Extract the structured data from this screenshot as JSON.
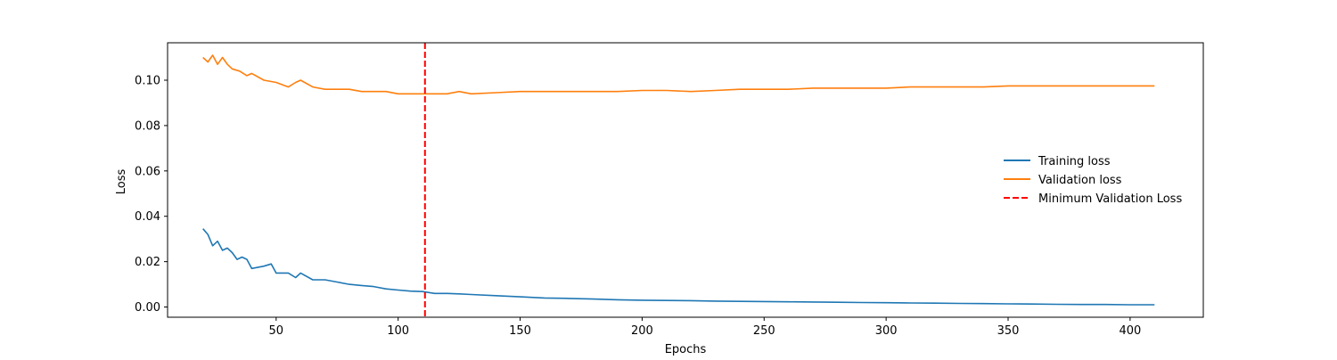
{
  "chart_data": {
    "type": "line",
    "title": "",
    "xlabel": "Epochs",
    "ylabel": "Loss",
    "xlim": [
      5.5,
      430
    ],
    "ylim": [
      -0.0045,
      0.1165
    ],
    "xticks": [
      50,
      100,
      150,
      200,
      250,
      300,
      350,
      400
    ],
    "xtick_labels": [
      "50",
      "100",
      "150",
      "200",
      "250",
      "300",
      "350",
      "400"
    ],
    "yticks": [
      0.0,
      0.02,
      0.04,
      0.06,
      0.08,
      0.1
    ],
    "ytick_labels": [
      "0.00",
      "0.02",
      "0.04",
      "0.06",
      "0.08",
      "0.10"
    ],
    "grid": false,
    "legend_position": "center-right",
    "series": [
      {
        "name": "Training loss",
        "color": "#1f77b4",
        "style": "solid",
        "x": [
          20,
          22,
          24,
          26,
          28,
          30,
          32,
          34,
          36,
          38,
          40,
          45,
          48,
          50,
          55,
          58,
          60,
          65,
          70,
          75,
          80,
          85,
          90,
          95,
          100,
          105,
          110,
          115,
          120,
          125,
          130,
          140,
          150,
          160,
          170,
          180,
          190,
          200,
          210,
          220,
          230,
          240,
          250,
          260,
          270,
          280,
          290,
          300,
          310,
          320,
          330,
          340,
          350,
          360,
          370,
          380,
          390,
          400,
          410
        ],
        "y": [
          0.0345,
          0.032,
          0.027,
          0.029,
          0.025,
          0.026,
          0.024,
          0.021,
          0.022,
          0.021,
          0.017,
          0.018,
          0.019,
          0.015,
          0.015,
          0.013,
          0.015,
          0.012,
          0.012,
          0.011,
          0.01,
          0.0095,
          0.009,
          0.008,
          0.0075,
          0.007,
          0.0068,
          0.006,
          0.006,
          0.0058,
          0.0055,
          0.005,
          0.0045,
          0.004,
          0.0038,
          0.0035,
          0.0032,
          0.003,
          0.0029,
          0.0028,
          0.0026,
          0.0025,
          0.0024,
          0.0023,
          0.0022,
          0.0021,
          0.002,
          0.0019,
          0.0018,
          0.0017,
          0.0016,
          0.0015,
          0.0014,
          0.0013,
          0.0012,
          0.0011,
          0.0011,
          0.001,
          0.001
        ]
      },
      {
        "name": "Validation loss",
        "color": "#ff7f0e",
        "style": "solid",
        "x": [
          20,
          22,
          24,
          26,
          28,
          30,
          32,
          35,
          38,
          40,
          45,
          50,
          55,
          58,
          60,
          65,
          70,
          75,
          80,
          85,
          90,
          95,
          100,
          105,
          110,
          115,
          120,
          125,
          130,
          140,
          150,
          160,
          170,
          180,
          190,
          200,
          210,
          220,
          230,
          240,
          250,
          260,
          270,
          280,
          290,
          300,
          310,
          320,
          330,
          340,
          350,
          360,
          370,
          380,
          390,
          400,
          410
        ],
        "y": [
          0.11,
          0.108,
          0.111,
          0.107,
          0.11,
          0.107,
          0.105,
          0.104,
          0.102,
          0.103,
          0.1,
          0.099,
          0.097,
          0.099,
          0.1,
          0.097,
          0.096,
          0.096,
          0.096,
          0.095,
          0.095,
          0.095,
          0.094,
          0.094,
          0.094,
          0.094,
          0.094,
          0.095,
          0.094,
          0.0945,
          0.095,
          0.095,
          0.095,
          0.095,
          0.095,
          0.0955,
          0.0955,
          0.095,
          0.0955,
          0.096,
          0.096,
          0.096,
          0.0965,
          0.0965,
          0.0965,
          0.0965,
          0.097,
          0.097,
          0.097,
          0.097,
          0.0975,
          0.0975,
          0.0975,
          0.0975,
          0.0975,
          0.0975,
          0.0975
        ]
      },
      {
        "name": "Minimum Validation Loss",
        "color": "#ff0000",
        "style": "dashed",
        "vertical_x": 111
      }
    ]
  }
}
